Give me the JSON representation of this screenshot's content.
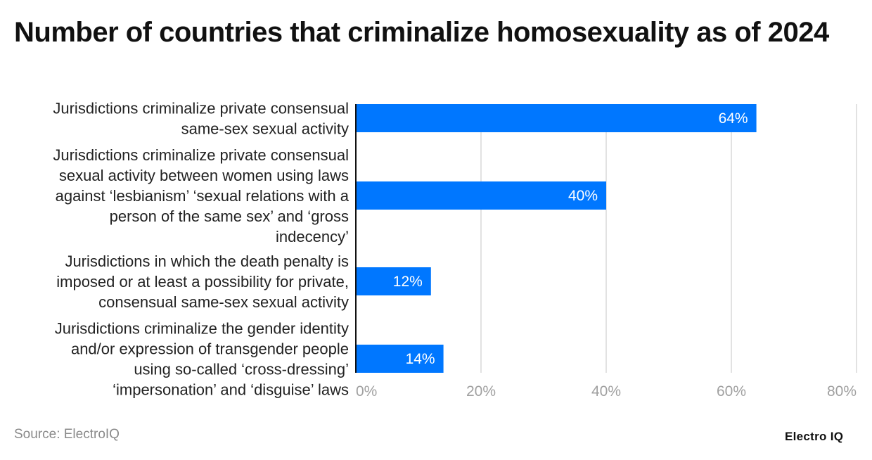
{
  "chart_data": {
    "type": "bar",
    "orientation": "horizontal",
    "title": "Number of countries that criminalize homosexuality as of 2024",
    "categories": [
      "Jurisdictions criminalize private consensual same-sex sexual activity",
      "Jurisdictions criminalize private consensual sexual activity between women using laws against ‘lesbianism’ ‘sexual relations with a person of the same sex’ and ‘gross indecency’",
      "Jurisdictions in which the death penalty is imposed or at least a possibility for private, consensual same-sex sexual activity",
      "Jurisdictions criminalize the gender identity and/or expression of transgender people using so-called ‘cross-dressing’ ‘impersonation’ and ‘disguise’ laws"
    ],
    "category_lines": [
      [
        "Jurisdictions criminalize private consensual",
        "same-sex sexual activity"
      ],
      [
        "Jurisdictions criminalize private consensual",
        "sexual activity between women using laws",
        "against ‘lesbianism’ ‘sexual relations with a",
        "person of the same sex’ and ‘gross",
        "indecency’"
      ],
      [
        "Jurisdictions in which the death penalty is",
        "imposed or at least a possibility for private,",
        "consensual same-sex sexual activity"
      ],
      [
        "Jurisdictions criminalize the gender identity",
        "and/or expression of transgender people",
        "using so-called ‘cross-dressing’",
        "‘impersonation’ and ‘disguise’ laws"
      ]
    ],
    "values": [
      64,
      40,
      12,
      14
    ],
    "data_labels": [
      "64%",
      "40%",
      "12%",
      "14%"
    ],
    "xlim": [
      0,
      80
    ],
    "x_ticks": [
      0,
      20,
      40,
      60,
      80
    ],
    "x_tick_labels": [
      "0%",
      "20%",
      "40%",
      "60%",
      "80%"
    ],
    "xlabel": "",
    "ylabel": "",
    "grid": true,
    "legend": "none",
    "bar_color": "#0077FF"
  },
  "footer": {
    "source": "Source: ElectroIQ",
    "logo": "Electro IQ"
  }
}
